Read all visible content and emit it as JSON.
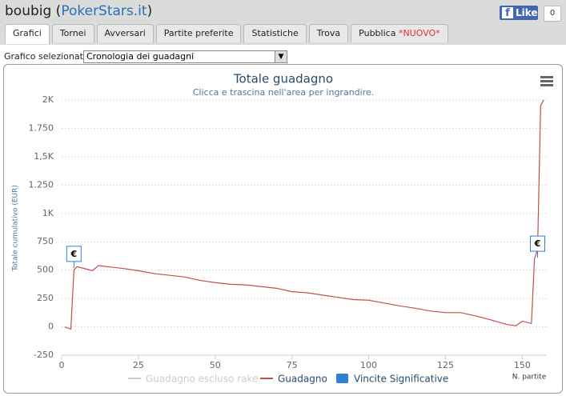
{
  "header": {
    "user": "boubig",
    "site": "PokerStars.it",
    "like": "Like",
    "like_count": "0"
  },
  "tabs": [
    "Grafici",
    "Tornei",
    "Avversari",
    "Partite preferite",
    "Statistiche",
    "Trova",
    "Pubblica"
  ],
  "tab_badge": "*NUOVO*",
  "selector": {
    "label": "Grafico selezionato",
    "value": "Cronologia dei guadagni"
  },
  "chart_data": {
    "type": "line",
    "title": "Totale guadagno",
    "subtitle": "Clicca e trascina nell'area per ingrandire.",
    "y_label": "Totale cumulativo (EUR)",
    "x_label": "N. partite",
    "xlim": [
      0,
      158
    ],
    "xticks": [
      0,
      25,
      50,
      75,
      100,
      125,
      150
    ],
    "ylim": [
      -250,
      2000
    ],
    "yticks": [
      -250,
      0,
      250,
      500,
      750,
      {
        "value": 1000,
        "label": "1K"
      },
      {
        "value": 1250,
        "label": "1.250"
      },
      {
        "value": 1500,
        "label": "1,5K"
      },
      {
        "value": 1750,
        "label": "1.750"
      },
      {
        "value": 2000,
        "label": "2K"
      }
    ],
    "grid": true,
    "series": [
      {
        "name": "Guadagno escluso rake",
        "color": "#cccccc",
        "visible": false
      },
      {
        "name": "Guadagno",
        "color": "#c0504d",
        "x": [
          1,
          3,
          4,
          5,
          8,
          10,
          12,
          15,
          20,
          25,
          30,
          35,
          40,
          45,
          50,
          55,
          60,
          65,
          70,
          75,
          80,
          85,
          90,
          95,
          100,
          105,
          110,
          115,
          120,
          125,
          130,
          135,
          140,
          145,
          148,
          150,
          153,
          154,
          155,
          156,
          157
        ],
        "values": [
          0,
          -20,
          500,
          530,
          510,
          495,
          540,
          530,
          515,
          495,
          470,
          455,
          440,
          410,
          390,
          375,
          370,
          355,
          340,
          310,
          300,
          280,
          260,
          240,
          235,
          210,
          185,
          165,
          140,
          125,
          125,
          95,
          60,
          20,
          10,
          50,
          30,
          600,
          680,
          1950,
          2000
        ]
      },
      {
        "name": "Vincite Significative",
        "color": "#2f7ed8",
        "x": [
          4,
          155
        ],
        "values": [
          520,
          610
        ],
        "labels": [
          "€",
          "€"
        ]
      }
    ]
  }
}
